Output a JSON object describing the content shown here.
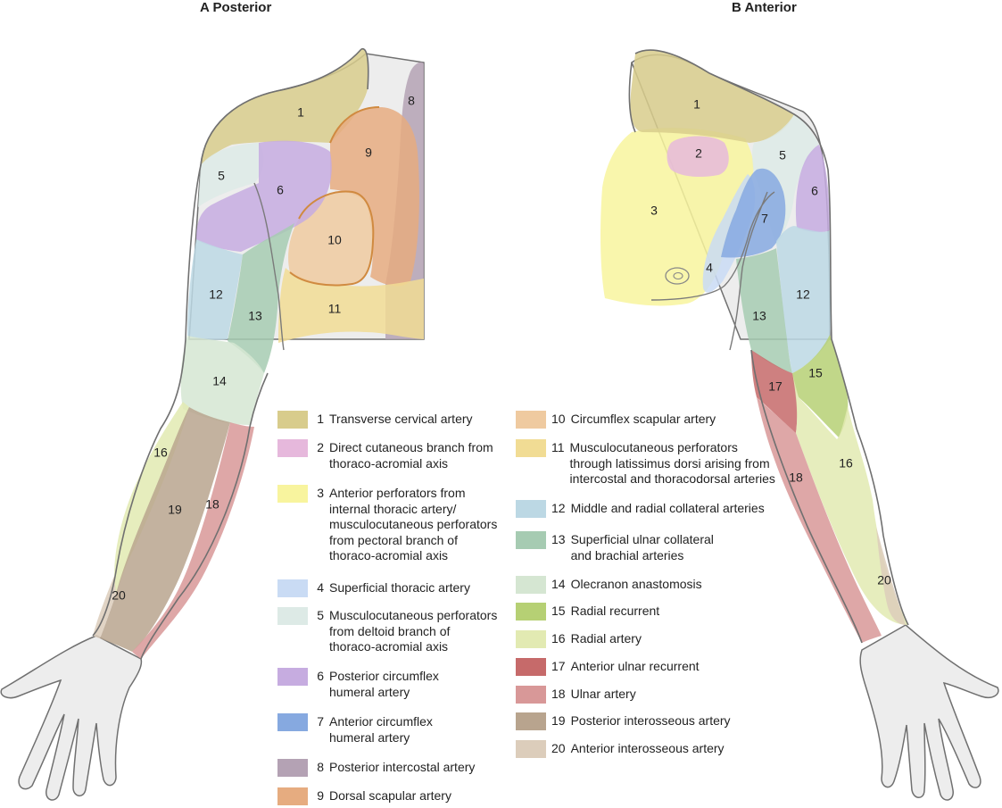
{
  "titles": {
    "posterior": "A  Posterior",
    "anterior": "B  Anterior"
  },
  "colors": {
    "1": "#d8cc8c",
    "2": "#e6b8dc",
    "3": "#f8f49e",
    "4": "#c9dbf4",
    "5": "#ddeae6",
    "6": "#c6ace0",
    "7": "#86a9e0",
    "8": "#b4a2b4",
    "9": "#e6ac80",
    "10": "#efcaa0",
    "11": "#f1dc94",
    "12": "#bcd8e4",
    "13": "#a6cbb2",
    "14": "#d5e6d2",
    "15": "#b6d074",
    "16": "#e2eab2",
    "17": "#c66a6a",
    "18": "#d89898",
    "19": "#b8a48e",
    "20": "#dccdbb",
    "skin": "#ededed",
    "outline": "#707070"
  },
  "legend": [
    {
      "num": "1",
      "label": "Transverse cervical artery"
    },
    {
      "num": "2",
      "label": "Direct cutaneous branch from\nthoraco-acromial axis"
    },
    {
      "num": "3",
      "label": "Anterior perforators from\ninternal thoracic artery/\nmusculocutaneous perforators\nfrom pectoral branch of\nthoraco-acromial axis"
    },
    {
      "num": "4",
      "label": "Superficial thoracic artery"
    },
    {
      "num": "5",
      "label": "Musculocutaneous perforators\nfrom deltoid branch of\nthoraco-acromial axis"
    },
    {
      "num": "6",
      "label": "Posterior circumflex\nhumeral artery"
    },
    {
      "num": "7",
      "label": "Anterior circumflex\nhumeral artery"
    },
    {
      "num": "8",
      "label": "Posterior intercostal artery"
    },
    {
      "num": "9",
      "label": "Dorsal scapular artery"
    },
    {
      "num": "10",
      "label": "Circumflex scapular artery"
    },
    {
      "num": "11",
      "label": "Musculocutaneous perforators\nthrough latissimus dorsi arising from\nintercostal and thoracodorsal arteries"
    },
    {
      "num": "12",
      "label": "Middle and radial collateral arteries"
    },
    {
      "num": "13",
      "label": "Superficial ulnar collateral\nand brachial arteries"
    },
    {
      "num": "14",
      "label": "Olecranon anastomosis"
    },
    {
      "num": "15",
      "label": "Radial recurrent"
    },
    {
      "num": "16",
      "label": "Radial artery"
    },
    {
      "num": "17",
      "label": "Anterior ulnar recurrent"
    },
    {
      "num": "18",
      "label": "Ulnar artery"
    },
    {
      "num": "19",
      "label": "Posterior interosseous artery"
    },
    {
      "num": "20",
      "label": "Anterior interosseous artery"
    }
  ]
}
